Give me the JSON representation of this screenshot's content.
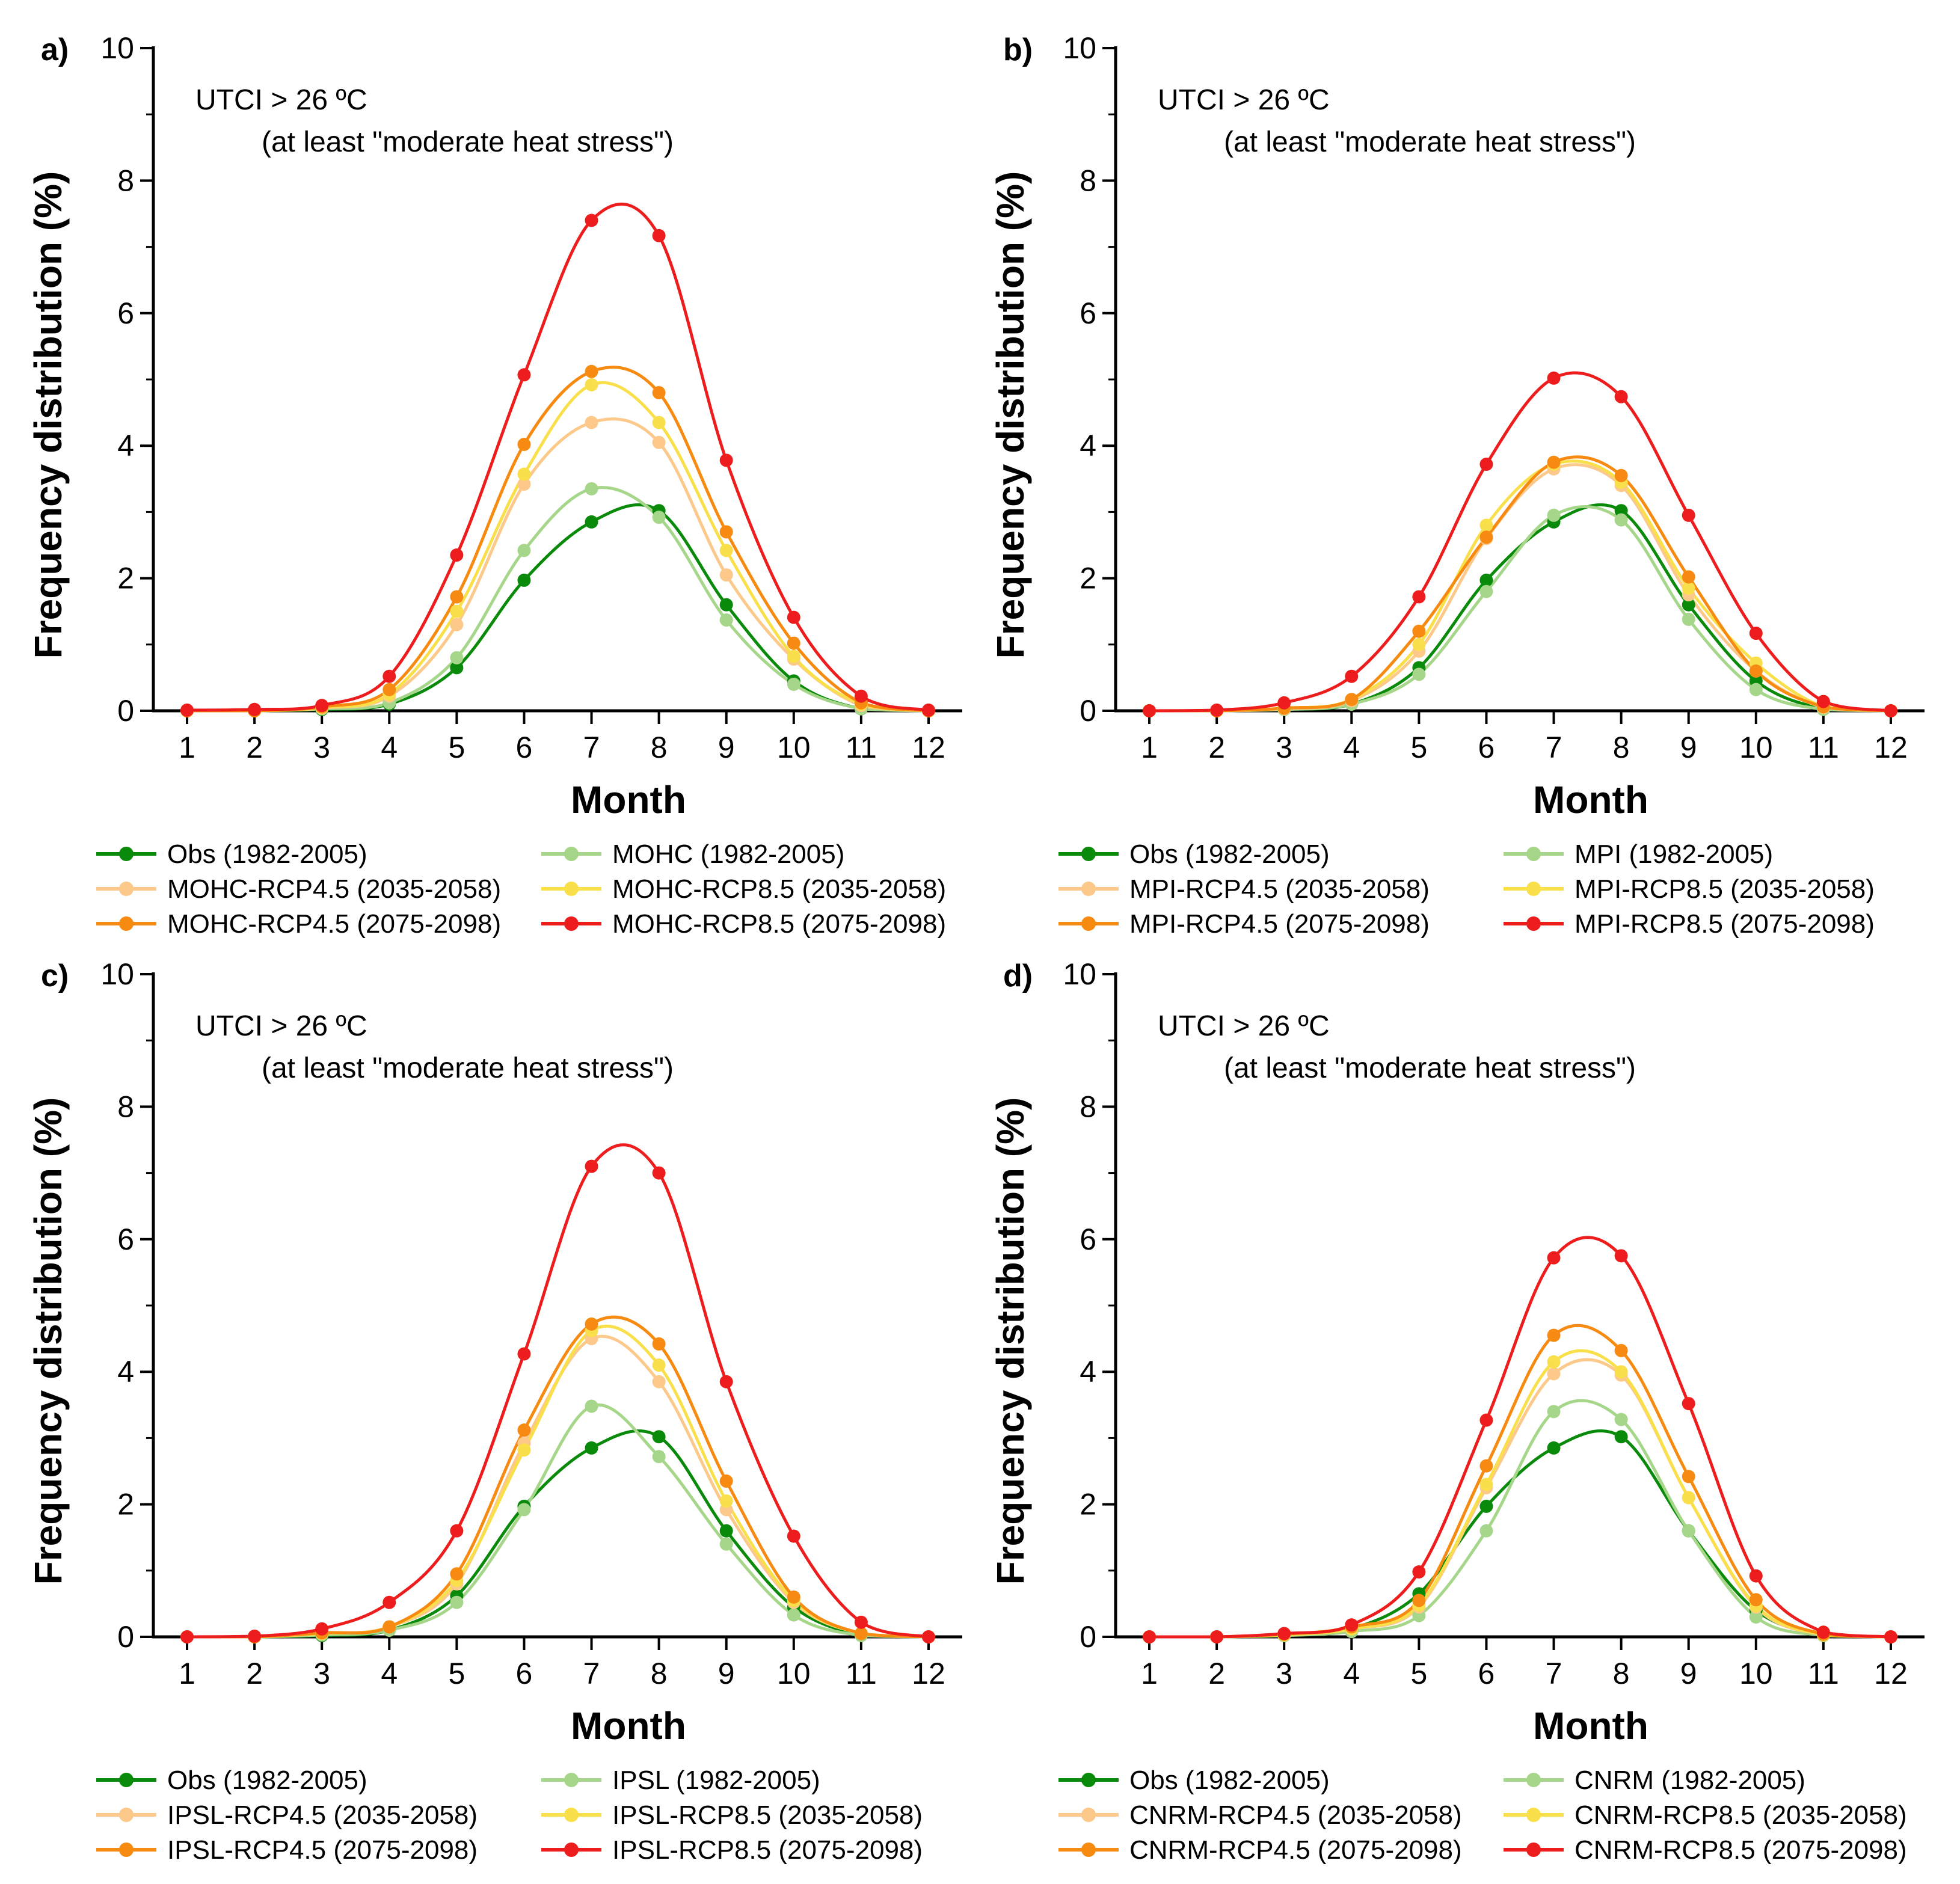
{
  "chart_data": [
    {
      "type": "line",
      "panel_label": "a)",
      "title": "",
      "annotation_line1": "UTCI > 26 ºC",
      "annotation_line2": "(at least \"moderate heat stress\")",
      "xlabel": "Month",
      "ylabel": "Frequency distribution (%)",
      "x": [
        1,
        2,
        3,
        4,
        5,
        6,
        7,
        8,
        9,
        10,
        11,
        12
      ],
      "xlim": [
        0.5,
        12.5
      ],
      "ylim": [
        0,
        10
      ],
      "yticks": [
        0,
        2,
        4,
        6,
        8,
        10
      ],
      "series": [
        {
          "name": "Obs (1982-2005)",
          "color": "#0a8a0a",
          "values": [
            0,
            0,
            0.02,
            0.1,
            0.65,
            1.97,
            2.85,
            3.02,
            1.6,
            0.45,
            0.03,
            0
          ]
        },
        {
          "name": "MOHC (1982-2005)",
          "color": "#a6d68a",
          "values": [
            0,
            0,
            0.03,
            0.12,
            0.8,
            2.42,
            3.35,
            2.92,
            1.37,
            0.4,
            0.03,
            0
          ]
        },
        {
          "name": "MOHC-RCP4.5 (2035-2058)",
          "color": "#fcc98a",
          "values": [
            0,
            0,
            0.04,
            0.22,
            1.3,
            3.42,
            4.35,
            4.05,
            2.05,
            0.78,
            0.08,
            0
          ]
        },
        {
          "name": "MOHC-RCP8.5 (2035-2058)",
          "color": "#f9e04a",
          "values": [
            0,
            0,
            0.05,
            0.25,
            1.5,
            3.57,
            4.92,
            4.35,
            2.42,
            0.82,
            0.1,
            0
          ]
        },
        {
          "name": "MOHC-RCP4.5 (2075-2098)",
          "color": "#f78a10",
          "values": [
            0,
            0,
            0.06,
            0.32,
            1.72,
            4.02,
            5.12,
            4.8,
            2.7,
            1.02,
            0.12,
            0
          ]
        },
        {
          "name": "MOHC-RCP8.5 (2075-2098)",
          "color": "#ee1d1d",
          "values": [
            0.01,
            0.02,
            0.08,
            0.52,
            2.35,
            5.07,
            7.4,
            7.17,
            3.78,
            1.41,
            0.22,
            0.01
          ]
        }
      ]
    },
    {
      "type": "line",
      "panel_label": "b)",
      "title": "",
      "annotation_line1": "UTCI > 26 ºC",
      "annotation_line2": "(at least \"moderate heat stress\")",
      "xlabel": "Month",
      "ylabel": "Frequency distribution (%)",
      "x": [
        1,
        2,
        3,
        4,
        5,
        6,
        7,
        8,
        9,
        10,
        11,
        12
      ],
      "xlim": [
        0.5,
        12.5
      ],
      "ylim": [
        0,
        10
      ],
      "yticks": [
        0,
        2,
        4,
        6,
        8,
        10
      ],
      "series": [
        {
          "name": "Obs (1982-2005)",
          "color": "#0a8a0a",
          "values": [
            0,
            0,
            0.02,
            0.1,
            0.65,
            1.97,
            2.85,
            3.02,
            1.6,
            0.45,
            0.03,
            0
          ]
        },
        {
          "name": "MPI (1982-2005)",
          "color": "#a6d68a",
          "values": [
            0,
            0,
            0.02,
            0.1,
            0.55,
            1.8,
            2.95,
            2.88,
            1.38,
            0.32,
            0.02,
            0
          ]
        },
        {
          "name": "MPI-RCP4.5 (2035-2058)",
          "color": "#fcc98a",
          "values": [
            0,
            0,
            0.03,
            0.15,
            0.9,
            2.6,
            3.65,
            3.4,
            1.75,
            0.6,
            0.05,
            0
          ]
        },
        {
          "name": "MPI-RCP8.5 (2035-2058)",
          "color": "#f9e04a",
          "values": [
            0,
            0,
            0.04,
            0.17,
            1.0,
            2.8,
            3.72,
            3.45,
            1.85,
            0.72,
            0.06,
            0
          ]
        },
        {
          "name": "MPI-RCP4.5 (2075-2098)",
          "color": "#f78a10",
          "values": [
            0,
            0,
            0.04,
            0.17,
            1.2,
            2.62,
            3.75,
            3.55,
            2.02,
            0.6,
            0.06,
            0
          ]
        },
        {
          "name": "MPI-RCP8.5 (2075-2098)",
          "color": "#ee1d1d",
          "values": [
            0,
            0.01,
            0.12,
            0.52,
            1.72,
            3.72,
            5.02,
            4.74,
            2.95,
            1.17,
            0.14,
            0
          ]
        }
      ]
    },
    {
      "type": "line",
      "panel_label": "c)",
      "title": "",
      "annotation_line1": "UTCI > 26 ºC",
      "annotation_line2": "(at least \"moderate heat stress\")",
      "xlabel": "Month",
      "ylabel": "Frequency distribution (%)",
      "x": [
        1,
        2,
        3,
        4,
        5,
        6,
        7,
        8,
        9,
        10,
        11,
        12
      ],
      "xlim": [
        0.5,
        12.5
      ],
      "ylim": [
        0,
        10
      ],
      "yticks": [
        0,
        2,
        4,
        6,
        8,
        10
      ],
      "series": [
        {
          "name": "Obs (1982-2005)",
          "color": "#0a8a0a",
          "values": [
            0,
            0,
            0.02,
            0.1,
            0.62,
            1.97,
            2.85,
            3.02,
            1.6,
            0.45,
            0.03,
            0
          ]
        },
        {
          "name": "IPSL (1982-2005)",
          "color": "#a6d68a",
          "values": [
            0,
            0,
            0.03,
            0.1,
            0.52,
            1.92,
            3.48,
            2.72,
            1.4,
            0.33,
            0.02,
            0
          ]
        },
        {
          "name": "IPSL-RCP4.5 (2035-2058)",
          "color": "#fcc98a",
          "values": [
            0,
            0,
            0.05,
            0.15,
            0.8,
            2.92,
            4.5,
            3.85,
            1.92,
            0.52,
            0.05,
            0
          ]
        },
        {
          "name": "IPSL-RCP8.5 (2035-2058)",
          "color": "#f9e04a",
          "values": [
            0,
            0,
            0.05,
            0.15,
            0.85,
            2.82,
            4.62,
            4.1,
            2.05,
            0.55,
            0.05,
            0
          ]
        },
        {
          "name": "IPSL-RCP4.5 (2075-2098)",
          "color": "#f78a10",
          "values": [
            0,
            0,
            0.06,
            0.15,
            0.95,
            3.12,
            4.72,
            4.42,
            2.35,
            0.6,
            0.05,
            0
          ]
        },
        {
          "name": "IPSL-RCP8.5 (2075-2098)",
          "color": "#ee1d1d",
          "values": [
            0,
            0.01,
            0.12,
            0.52,
            1.6,
            4.27,
            7.1,
            7.0,
            3.85,
            1.52,
            0.22,
            0
          ]
        }
      ]
    },
    {
      "type": "line",
      "panel_label": "d)",
      "title": "",
      "annotation_line1": "UTCI > 26 ºC",
      "annotation_line2": "(at least \"moderate heat stress\")",
      "xlabel": "Month",
      "ylabel": "Frequency distribution (%)",
      "x": [
        1,
        2,
        3,
        4,
        5,
        6,
        7,
        8,
        9,
        10,
        11,
        12
      ],
      "xlim": [
        0.5,
        12.5
      ],
      "ylim": [
        0,
        10
      ],
      "yticks": [
        0,
        2,
        4,
        6,
        8,
        10
      ],
      "series": [
        {
          "name": "Obs (1982-2005)",
          "color": "#0a8a0a",
          "values": [
            0,
            0,
            0.02,
            0.12,
            0.65,
            1.97,
            2.85,
            3.02,
            1.6,
            0.4,
            0.03,
            0
          ]
        },
        {
          "name": "CNRM (1982-2005)",
          "color": "#a6d68a",
          "values": [
            0,
            0,
            0.02,
            0.08,
            0.32,
            1.6,
            3.4,
            3.28,
            1.6,
            0.3,
            0.02,
            0
          ]
        },
        {
          "name": "CNRM-RCP4.5 (2035-2058)",
          "color": "#fcc98a",
          "values": [
            0,
            0,
            0.03,
            0.12,
            0.45,
            2.25,
            3.97,
            3.95,
            2.1,
            0.45,
            0.03,
            0
          ]
        },
        {
          "name": "CNRM-RCP8.5 (2035-2058)",
          "color": "#f9e04a",
          "values": [
            0,
            0,
            0.03,
            0.12,
            0.48,
            2.3,
            4.15,
            4.0,
            2.1,
            0.47,
            0.03,
            0
          ]
        },
        {
          "name": "CNRM-RCP4.5 (2075-2098)",
          "color": "#f78a10",
          "values": [
            0,
            0,
            0.04,
            0.15,
            0.55,
            2.58,
            4.55,
            4.32,
            2.42,
            0.56,
            0.04,
            0
          ]
        },
        {
          "name": "CNRM-RCP8.5 (2075-2098)",
          "color": "#ee1d1d",
          "values": [
            0,
            0,
            0.05,
            0.18,
            0.98,
            3.27,
            5.72,
            5.75,
            3.52,
            0.92,
            0.07,
            0
          ]
        }
      ]
    }
  ]
}
